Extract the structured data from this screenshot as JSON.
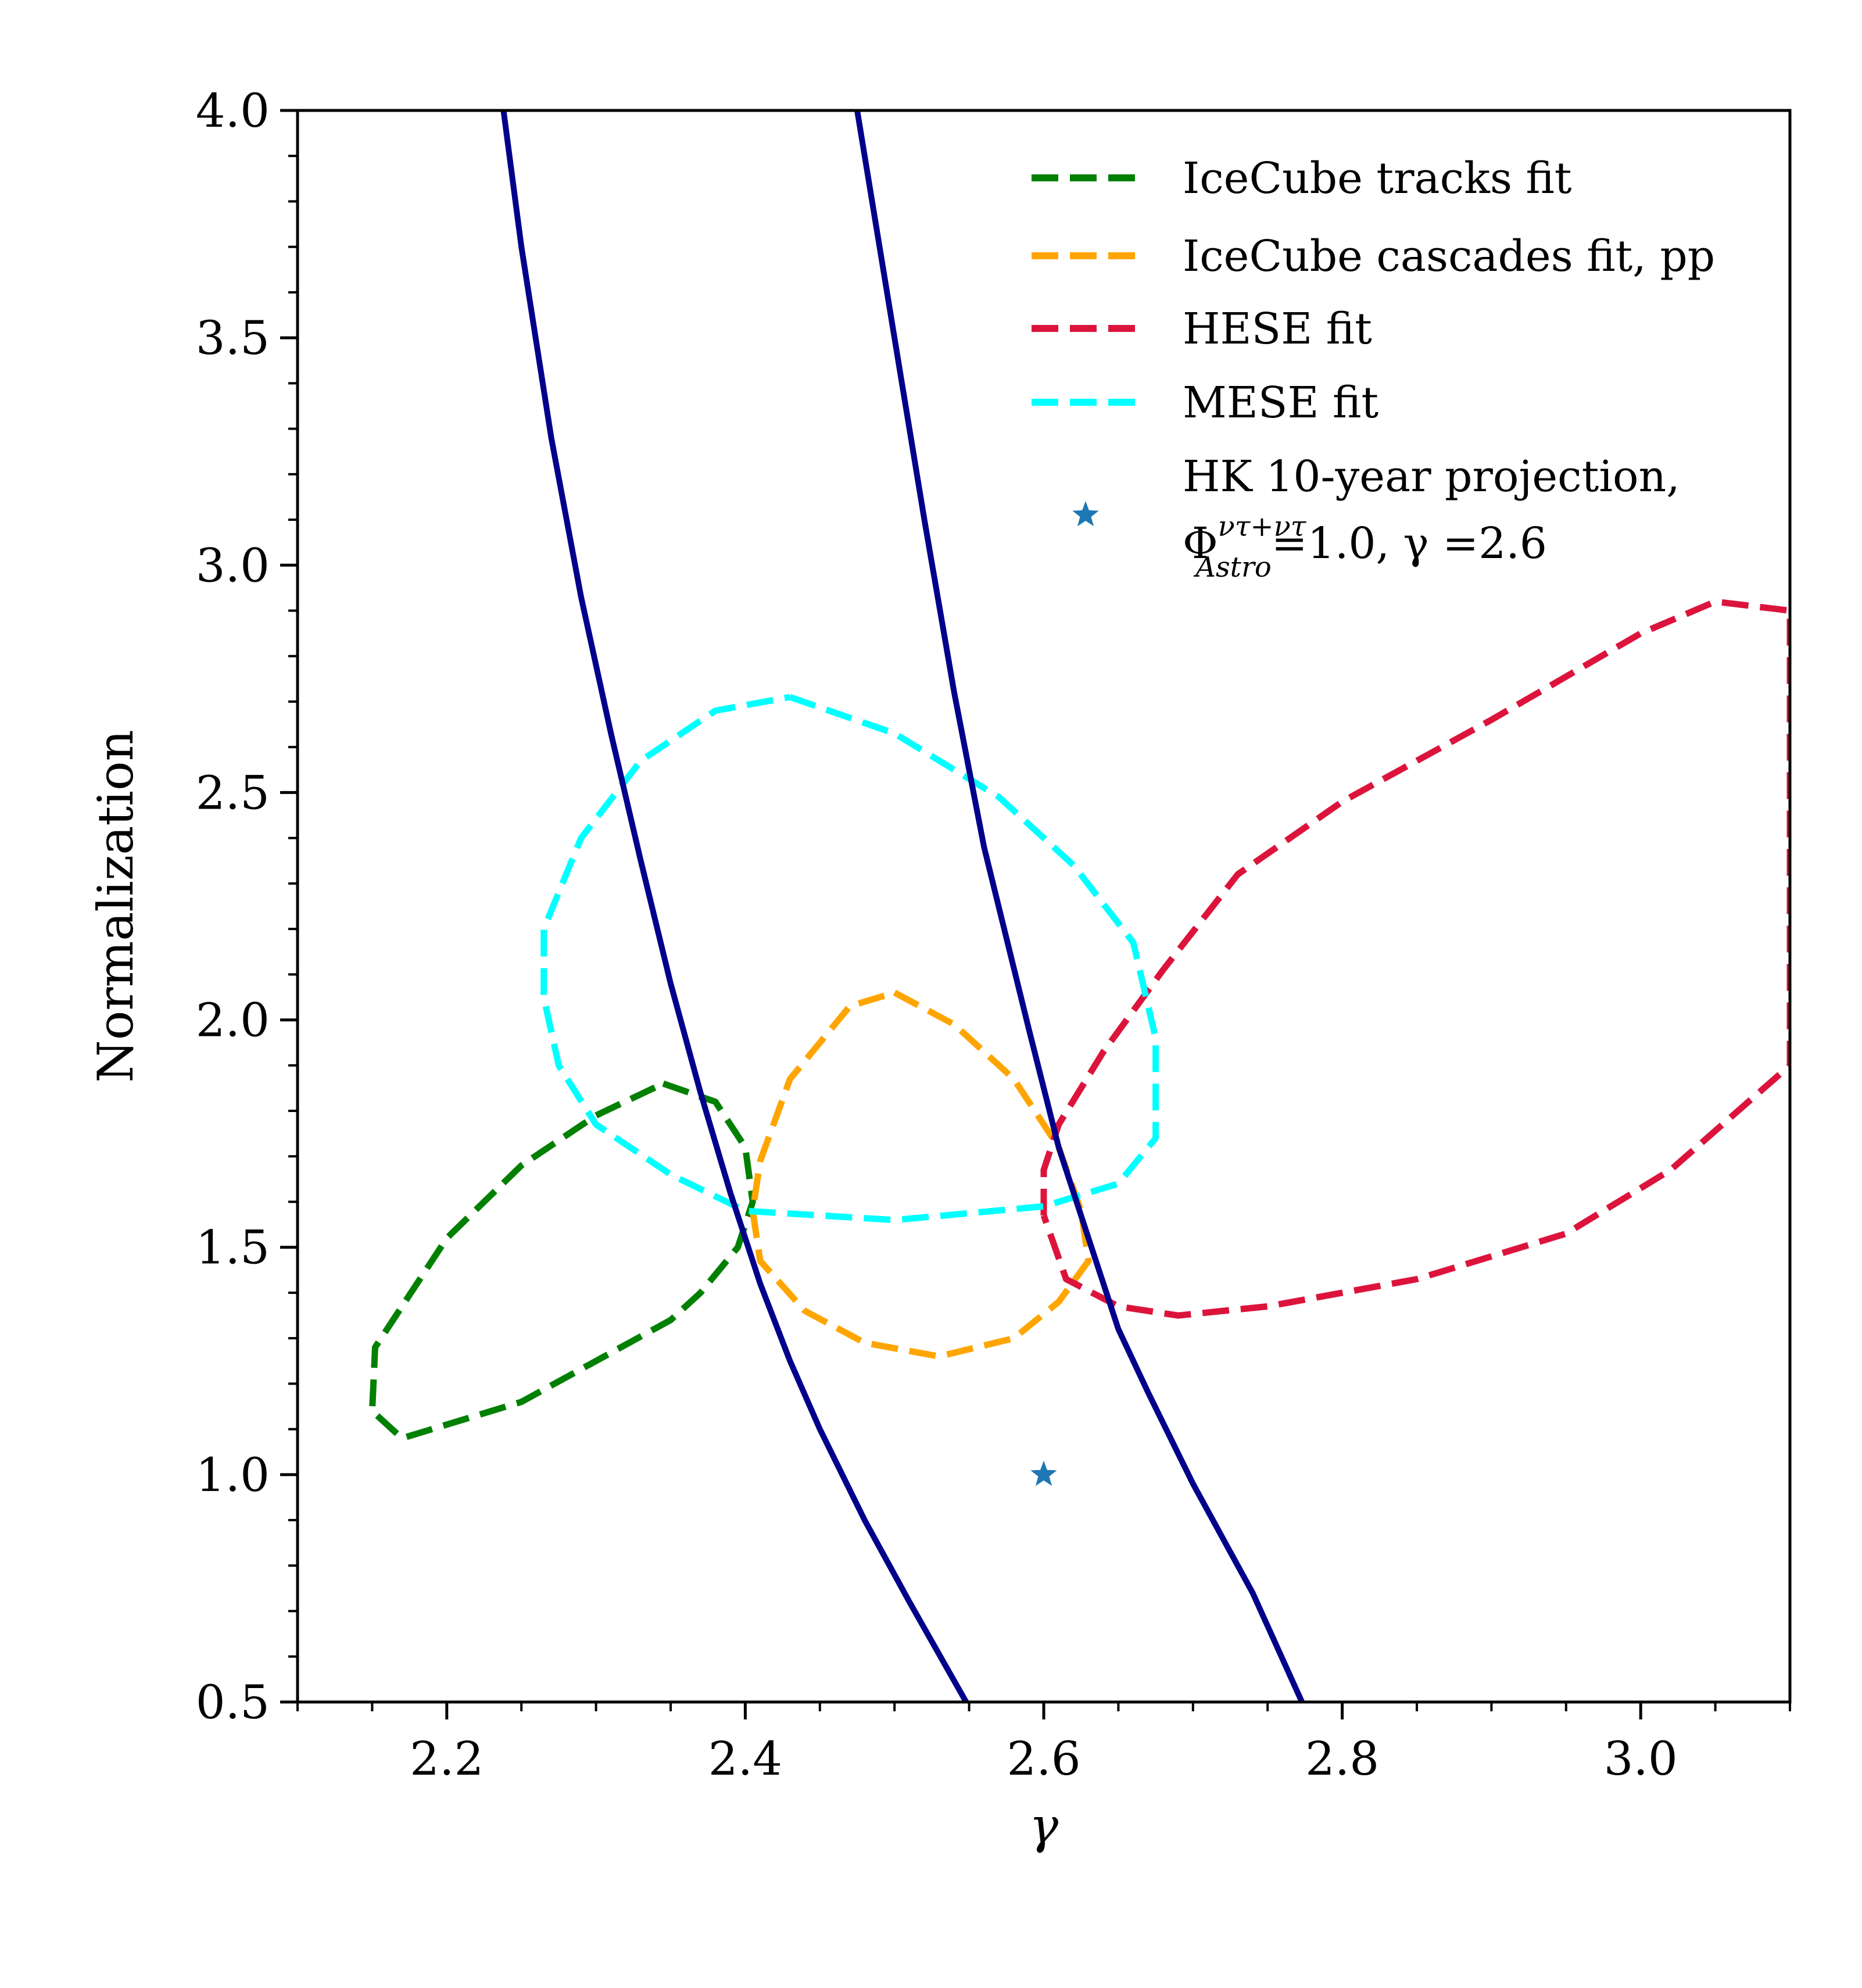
{
  "chart_data": {
    "type": "line",
    "xlabel": "γ",
    "ylabel": "Normalization",
    "xlim": [
      2.1,
      3.1
    ],
    "ylim": [
      0.5,
      4.0
    ],
    "xticks": [
      2.2,
      2.4,
      2.6,
      2.8,
      3.0
    ],
    "xtick_labels": [
      "2.2",
      "2.4",
      "2.6",
      "2.8",
      "3.0"
    ],
    "yticks": [
      0.5,
      1.0,
      1.5,
      2.0,
      2.5,
      3.0,
      3.5,
      4.0
    ],
    "ytick_labels": [
      "0.5",
      "1.0",
      "1.5",
      "2.0",
      "2.5",
      "3.0",
      "3.5",
      "4.0"
    ],
    "grid": false,
    "legend_position": "top-right",
    "series": [
      {
        "kind": "contour",
        "name": "IceCube tracks fit",
        "color": "#008000",
        "style": "dashed",
        "points": [
          [
            2.345,
            1.86
          ],
          [
            2.38,
            1.82
          ],
          [
            2.4,
            1.72
          ],
          [
            2.405,
            1.6
          ],
          [
            2.395,
            1.5
          ],
          [
            2.37,
            1.4
          ],
          [
            2.35,
            1.34
          ],
          [
            2.3,
            1.25
          ],
          [
            2.25,
            1.16
          ],
          [
            2.2,
            1.11
          ],
          [
            2.17,
            1.08
          ],
          [
            2.15,
            1.14
          ],
          [
            2.152,
            1.28
          ],
          [
            2.2,
            1.52
          ],
          [
            2.25,
            1.68
          ],
          [
            2.3,
            1.79
          ],
          [
            2.345,
            1.86
          ]
        ]
      },
      {
        "kind": "contour",
        "name": "IceCube cascades fit, pp",
        "color": "#FFA500",
        "style": "dashed",
        "points": [
          [
            2.5,
            2.06
          ],
          [
            2.54,
            1.99
          ],
          [
            2.58,
            1.87
          ],
          [
            2.61,
            1.72
          ],
          [
            2.625,
            1.58
          ],
          [
            2.63,
            1.47
          ],
          [
            2.61,
            1.38
          ],
          [
            2.58,
            1.3
          ],
          [
            2.53,
            1.26
          ],
          [
            2.48,
            1.29
          ],
          [
            2.44,
            1.36
          ],
          [
            2.41,
            1.47
          ],
          [
            2.405,
            1.58
          ],
          [
            2.41,
            1.69
          ],
          [
            2.43,
            1.87
          ],
          [
            2.47,
            2.03
          ],
          [
            2.5,
            2.06
          ]
        ]
      },
      {
        "kind": "contour",
        "name": "HESE fit",
        "color": "#DC143C",
        "style": "dashed",
        "points": [
          [
            2.6,
            1.57
          ],
          [
            2.6,
            1.67
          ],
          [
            2.61,
            1.77
          ],
          [
            2.64,
            1.93
          ],
          [
            2.68,
            2.11
          ],
          [
            2.73,
            2.32
          ],
          [
            2.8,
            2.48
          ],
          [
            2.9,
            2.66
          ],
          [
            3.0,
            2.85
          ],
          [
            3.05,
            2.92
          ],
          [
            3.1,
            2.9
          ],
          [
            3.1,
            1.9
          ],
          [
            3.02,
            1.67
          ],
          [
            2.95,
            1.53
          ],
          [
            2.85,
            1.43
          ],
          [
            2.75,
            1.37
          ],
          [
            2.69,
            1.35
          ],
          [
            2.65,
            1.37
          ],
          [
            2.615,
            1.43
          ],
          [
            2.6,
            1.57
          ]
        ]
      },
      {
        "kind": "contour",
        "name": "MESE fit",
        "color": "#00FFFF",
        "style": "dashed",
        "points": [
          [
            2.43,
            2.71
          ],
          [
            2.5,
            2.63
          ],
          [
            2.57,
            2.49
          ],
          [
            2.62,
            2.34
          ],
          [
            2.66,
            2.17
          ],
          [
            2.675,
            1.96
          ],
          [
            2.675,
            1.74
          ],
          [
            2.65,
            1.64
          ],
          [
            2.6,
            1.59
          ],
          [
            2.5,
            1.56
          ],
          [
            2.4,
            1.58
          ],
          [
            2.35,
            1.66
          ],
          [
            2.3,
            1.77
          ],
          [
            2.275,
            1.9
          ],
          [
            2.265,
            2.05
          ],
          [
            2.265,
            2.2
          ],
          [
            2.29,
            2.4
          ],
          [
            2.33,
            2.57
          ],
          [
            2.38,
            2.68
          ],
          [
            2.43,
            2.71
          ]
        ]
      },
      {
        "kind": "boundary",
        "name": "",
        "color": "#00008B",
        "style": "solid",
        "points": [
          [
            2.238,
            4.0
          ],
          [
            2.25,
            3.7
          ],
          [
            2.27,
            3.28
          ],
          [
            2.29,
            2.93
          ],
          [
            2.31,
            2.63
          ],
          [
            2.33,
            2.35
          ],
          [
            2.35,
            2.08
          ],
          [
            2.37,
            1.84
          ],
          [
            2.39,
            1.62
          ],
          [
            2.41,
            1.42
          ],
          [
            2.43,
            1.25
          ],
          [
            2.45,
            1.1
          ],
          [
            2.48,
            0.9
          ],
          [
            2.51,
            0.72
          ],
          [
            2.548,
            0.5
          ]
        ]
      },
      {
        "kind": "boundary",
        "name": "",
        "color": "#00008B",
        "style": "solid",
        "points": [
          [
            2.475,
            4.0
          ],
          [
            2.49,
            3.7
          ],
          [
            2.505,
            3.4
          ],
          [
            2.52,
            3.1
          ],
          [
            2.54,
            2.72
          ],
          [
            2.56,
            2.38
          ],
          [
            2.575,
            2.18
          ],
          [
            2.59,
            1.98
          ],
          [
            2.61,
            1.72
          ],
          [
            2.63,
            1.52
          ],
          [
            2.65,
            1.32
          ],
          [
            2.67,
            1.18
          ],
          [
            2.7,
            0.98
          ],
          [
            2.74,
            0.74
          ],
          [
            2.773,
            0.5
          ]
        ]
      },
      {
        "kind": "scatter",
        "name": "HK 10-year projection,",
        "name_line2_prefix": "Φ",
        "name_line2_sup": "ντ+ντ",
        "name_line2_sub": "Astro",
        "name_line2_suffix": "=1.0, γ =2.6",
        "color": "#1F77B4",
        "marker": "star",
        "points": [
          [
            2.6,
            1.0
          ]
        ]
      }
    ]
  }
}
